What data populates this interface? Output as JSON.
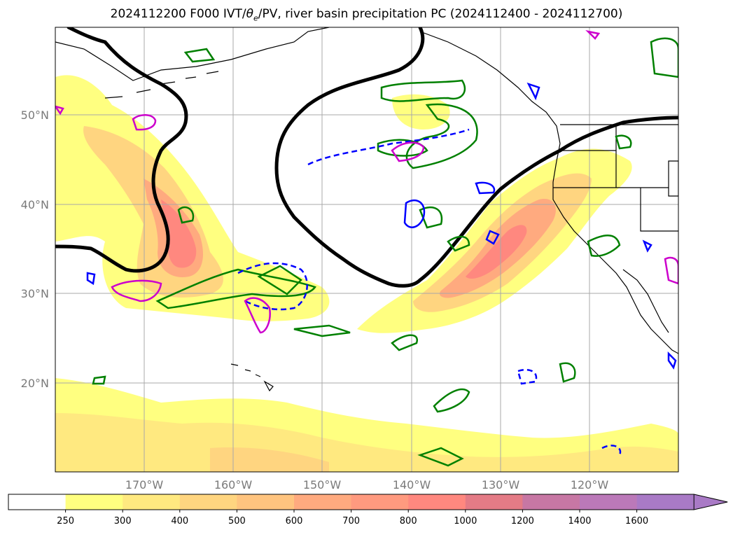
{
  "title": {
    "prefix": "2024112200 F000 IVT/",
    "theta": "θ",
    "theta_sub": "e",
    "suffix": "/PV, river basin precipitation PC (2024112400 - 2024112700)"
  },
  "map": {
    "lat_labels": [
      "50°N",
      "40°N",
      "30°N",
      "20°N"
    ],
    "lon_labels": [
      "170°W",
      "160°W",
      "150°W",
      "140°W",
      "130°W",
      "120°W"
    ],
    "grid": true
  },
  "colorbar": {
    "levels": [
      "250",
      "300",
      "400",
      "500",
      "600",
      "700",
      "800",
      "1000",
      "1200",
      "1400",
      "1600"
    ],
    "colors": [
      "#ffffff",
      "#ffff80",
      "#ffe980",
      "#ffd580",
      "#ffc47f",
      "#ffaa7f",
      "#ff9a7f",
      "#ff887f",
      "#e47b86",
      "#c777a4",
      "#bb79b9",
      "#a97ac6"
    ],
    "extend": "max"
  },
  "legend_colors": {
    "pv_positive": "#008000",
    "pv_negative": "#0000ff",
    "precip_pc": "#cc00cc",
    "theta_e": "#000000",
    "coastline": "#000000"
  }
}
